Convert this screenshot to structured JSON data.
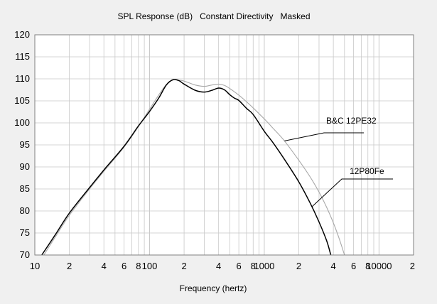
{
  "chart_data": {
    "type": "line",
    "title": "SPL Response (dB)   Constant Directivity   Masked",
    "xlabel": "Frequency (hertz)",
    "ylabel": "",
    "x_scale": "log",
    "xlim": [
      10,
      20000
    ],
    "ylim": [
      70,
      120
    ],
    "y_ticks": [
      70,
      75,
      80,
      85,
      90,
      95,
      100,
      105,
      110,
      115,
      120
    ],
    "x_tick_labels": [
      {
        "value": 10,
        "label": "10"
      },
      {
        "value": 20,
        "label": "2"
      },
      {
        "value": 40,
        "label": "4"
      },
      {
        "value": 60,
        "label": "6"
      },
      {
        "value": 80,
        "label": "8"
      },
      {
        "value": 100,
        "label": "100"
      },
      {
        "value": 200,
        "label": "2"
      },
      {
        "value": 400,
        "label": "4"
      },
      {
        "value": 600,
        "label": "6"
      },
      {
        "value": 800,
        "label": "8"
      },
      {
        "value": 1000,
        "label": "1000"
      },
      {
        "value": 2000,
        "label": "2"
      },
      {
        "value": 4000,
        "label": "4"
      },
      {
        "value": 6000,
        "label": "6"
      },
      {
        "value": 8000,
        "label": "8"
      },
      {
        "value": 10000,
        "label": "10000"
      },
      {
        "value": 20000,
        "label": "2"
      }
    ],
    "grid": true,
    "series": [
      {
        "name": "B&C 12PE32",
        "color": "#a8a8a8",
        "x": [
          12,
          15,
          20,
          30,
          40,
          60,
          80,
          100,
          120,
          140,
          160,
          180,
          200,
          250,
          300,
          350,
          400,
          450,
          500,
          600,
          700,
          800,
          1000,
          1200,
          1500,
          2000,
          2500,
          3000,
          3500,
          4000,
          4500,
          5000
        ],
        "y": [
          70,
          74,
          79,
          85,
          89,
          94.5,
          99.2,
          103.1,
          106.3,
          108.7,
          109.8,
          109.7,
          109.5,
          108.6,
          108.3,
          108.6,
          108.8,
          108.5,
          107.8,
          106.3,
          104.8,
          103.4,
          100.9,
          98.7,
          95.9,
          91.5,
          87.8,
          84.3,
          80.8,
          77.3,
          73.7,
          70
        ]
      },
      {
        "name": "12P80Fe",
        "color": "#000000",
        "x": [
          11.5,
          15,
          20,
          30,
          40,
          60,
          80,
          100,
          120,
          140,
          160,
          180,
          200,
          250,
          300,
          350,
          400,
          450,
          500,
          550,
          600,
          700,
          800,
          1000,
          1200,
          1500,
          2000,
          2500,
          3000,
          3500,
          3800
        ],
        "y": [
          70,
          74.5,
          79.5,
          85.3,
          89.3,
          94.7,
          99.3,
          102.6,
          105.6,
          108.6,
          109.8,
          109.6,
          108.8,
          107.4,
          107,
          107.4,
          107.9,
          107.5,
          106.4,
          105.6,
          105.1,
          103.3,
          101.9,
          98.1,
          95.4,
          91.7,
          86.6,
          81.9,
          77.5,
          73.2,
          70
        ]
      }
    ],
    "annotations": [
      {
        "text": "B&C 12PE32",
        "series": "B&C 12PE32",
        "pointer_freq": 1500
      },
      {
        "text": "12P80Fe",
        "series": "12P80Fe",
        "pointer_freq": 2600
      }
    ],
    "colors": {
      "background": "#f0f0f0",
      "plot_background": "#ffffff",
      "grid": "#c8c8c8",
      "axis": "#808080",
      "annotation_line": "#000000"
    }
  }
}
